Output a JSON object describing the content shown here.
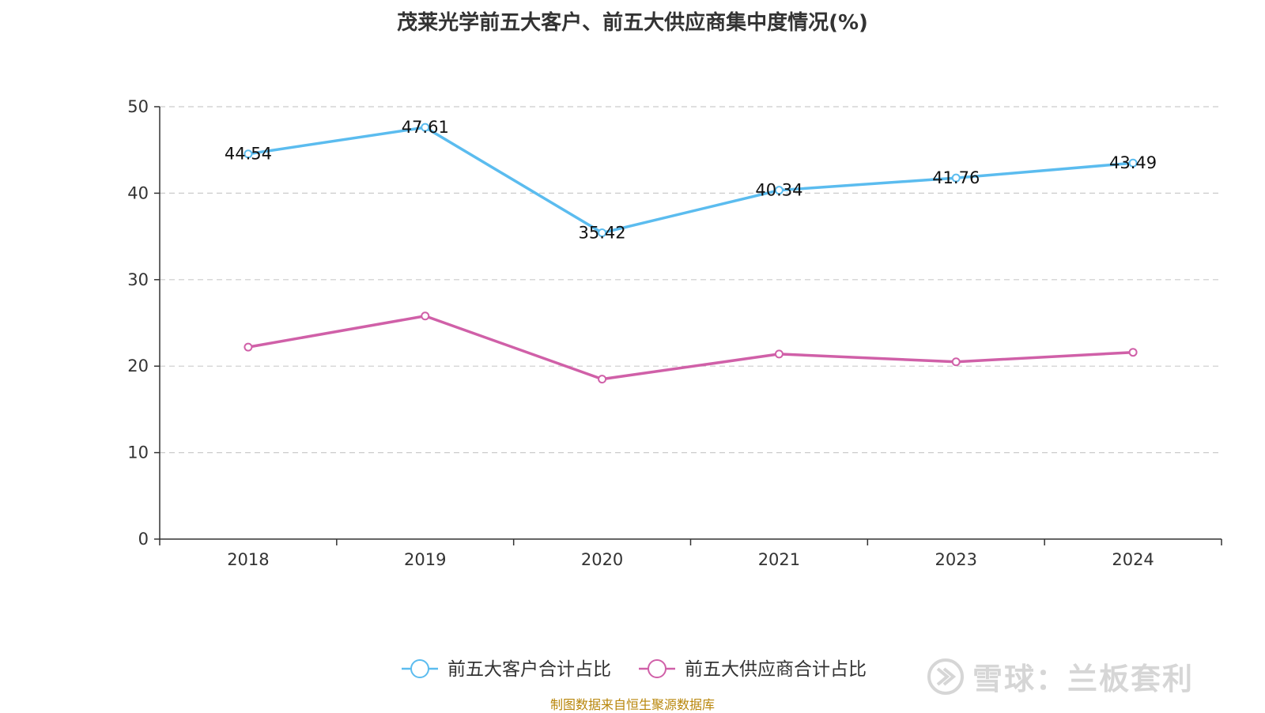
{
  "chart_data": {
    "type": "line",
    "title": "茂莱光学前五大客户、前五大供应商集中度情况(%)",
    "categories": [
      "2018",
      "2019",
      "2020",
      "2021",
      "2023",
      "2024"
    ],
    "ylim": [
      0,
      50
    ],
    "yticks": [
      0,
      10,
      20,
      30,
      40,
      50
    ],
    "grid": true,
    "legend_position": "bottom",
    "series": [
      {
        "name": "前五大客户合计占比",
        "color": "#5bbcef",
        "values": [
          44.54,
          47.61,
          35.42,
          40.34,
          41.76,
          43.49
        ],
        "show_labels": true
      },
      {
        "name": "前五大供应商合计占比",
        "color": "#d060a8",
        "values": [
          22.2,
          25.8,
          18.5,
          21.4,
          20.5,
          21.6
        ],
        "show_labels": false
      }
    ]
  },
  "source_note": "制图数据来自恒生聚源数据库",
  "watermark": "雪球：兰板套利"
}
